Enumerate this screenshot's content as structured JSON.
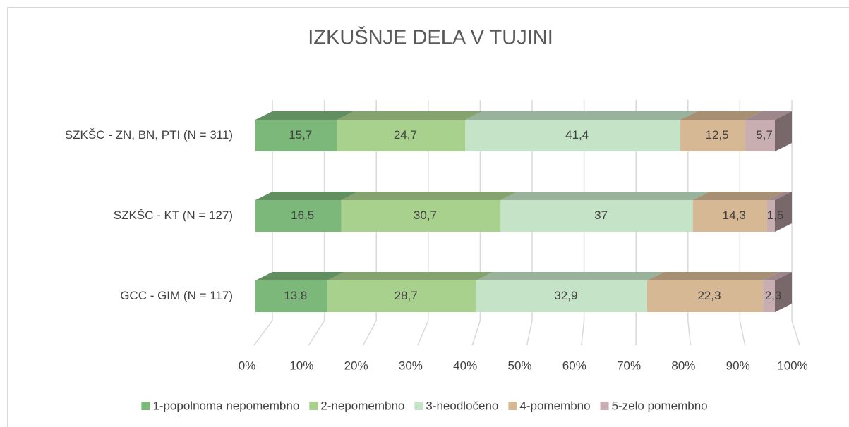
{
  "chart_data": {
    "type": "stacked-bar-3d-100",
    "title": "IZKUŠNJE DELA V TUJINI",
    "categories": [
      "SZKŠC - ZN, BN, PTI (N = 311)",
      "SZKŠC - KT (N = 127)",
      "GCC - GIM (N = 117)"
    ],
    "series": [
      {
        "name": "1-popolnoma nepomembno",
        "color": "#7db87b",
        "values": [
          15.7,
          16.5,
          13.8
        ],
        "value_labels": [
          "15,7",
          "16,5",
          "13,8"
        ]
      },
      {
        "name": "2-nepomembno",
        "color": "#a9d18e",
        "values": [
          24.7,
          30.7,
          28.7
        ],
        "value_labels": [
          "24,7",
          "30,7",
          "28,7"
        ]
      },
      {
        "name": "3-neodločeno",
        "color": "#c5e4c7",
        "values": [
          41.4,
          37,
          32.9
        ],
        "value_labels": [
          "41,4",
          "37",
          "32,9"
        ]
      },
      {
        "name": "4-pomembno",
        "color": "#d6b894",
        "values": [
          12.5,
          14.3,
          22.3
        ],
        "value_labels": [
          "12,5",
          "14,3",
          "22,3"
        ]
      },
      {
        "name": "5-zelo pomembno",
        "color": "#c9aeb1",
        "values": [
          5.7,
          1.5,
          2.3
        ],
        "value_labels": [
          "5,7",
          "1,5",
          "2,3"
        ]
      }
    ],
    "xlim": [
      0,
      100
    ],
    "xticks": [
      {
        "value": 0,
        "label": "0%"
      },
      {
        "value": 10,
        "label": "10%"
      },
      {
        "value": 20,
        "label": "20%"
      },
      {
        "value": 30,
        "label": "30%"
      },
      {
        "value": 40,
        "label": "40%"
      },
      {
        "value": 50,
        "label": "50%"
      },
      {
        "value": 60,
        "label": "60%"
      },
      {
        "value": 70,
        "label": "70%"
      },
      {
        "value": 80,
        "label": "80%"
      },
      {
        "value": 90,
        "label": "90%"
      },
      {
        "value": 100,
        "label": "100%"
      }
    ],
    "grid": true,
    "legend": "bottom"
  }
}
